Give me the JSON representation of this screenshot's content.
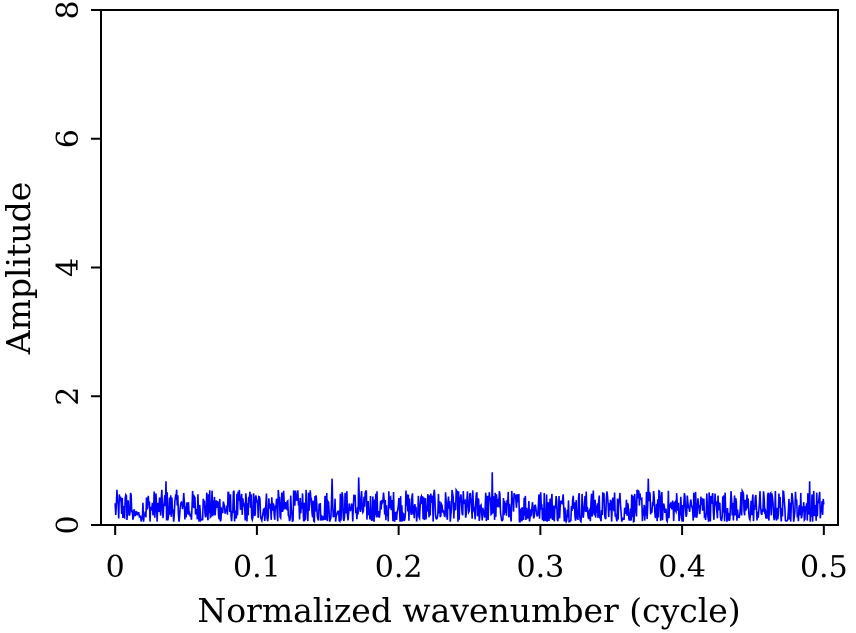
{
  "chart_data": {
    "type": "line",
    "title": "",
    "xlabel": "Normalized wavenumber (cycle)",
    "ylabel": "Amplitude",
    "xlim": [
      -0.01,
      0.51
    ],
    "ylim": [
      0,
      8
    ],
    "xticks": [
      0,
      0.1,
      0.2,
      0.3,
      0.4,
      0.5
    ],
    "xtick_labels": [
      "0",
      "0.1",
      "0.2",
      "0.3",
      "0.4",
      "0.5"
    ],
    "yticks": [
      0,
      2,
      4,
      6,
      8
    ],
    "ytick_labels": [
      "0",
      "2",
      "4",
      "6",
      "8"
    ],
    "grid": false,
    "legend": "none",
    "series": [
      {
        "color": "#0000ff",
        "x_range": [
          0,
          0.5
        ],
        "point_count": 1200,
        "typical_range": [
          0.05,
          0.55
        ],
        "peaks": [
          {
            "x": 0.036,
            "y": 0.68
          },
          {
            "x": 0.153,
            "y": 0.72
          },
          {
            "x": 0.172,
            "y": 0.74
          },
          {
            "x": 0.266,
            "y": 0.82
          },
          {
            "x": 0.376,
            "y": 0.72
          },
          {
            "x": 0.49,
            "y": 0.68
          }
        ]
      }
    ]
  }
}
